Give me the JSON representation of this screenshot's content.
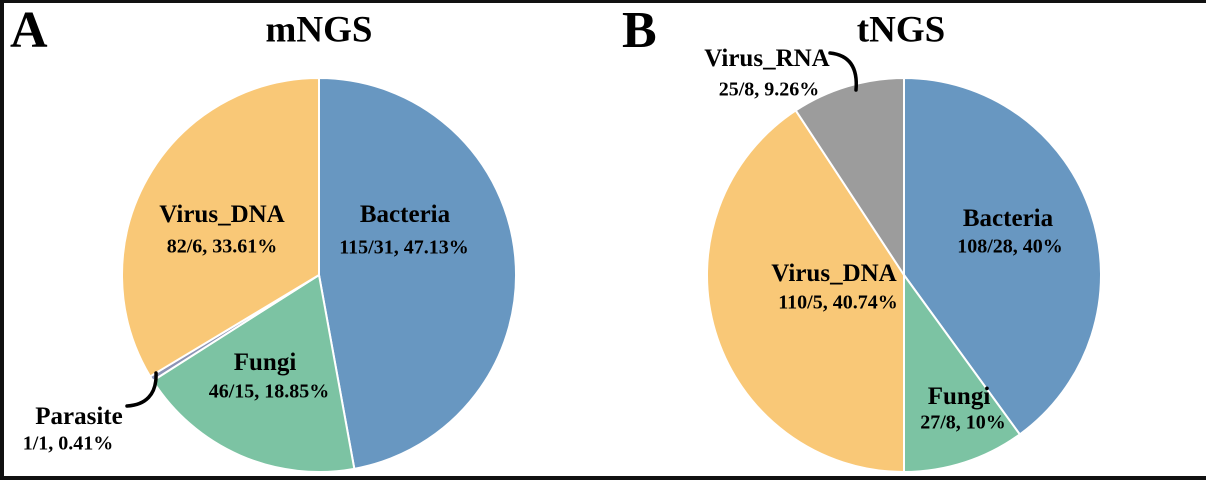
{
  "figure": {
    "background": "#ffffff",
    "border_color": "#111111"
  },
  "panels": [
    {
      "panel_label": "A",
      "title": "mNGS"
    },
    {
      "panel_label": "B",
      "title": "tNGS"
    }
  ],
  "chart_data": [
    {
      "type": "pie",
      "panel": "A",
      "title": "mNGS",
      "direction": "clockwise",
      "start_angle": "12-oclock",
      "gap_stroke_color": "#ffffff",
      "slices": [
        {
          "label": "Bacteria",
          "counts": "115/31",
          "percent": 47.13,
          "value_text": "115/31, 47.13%",
          "color": "#6897C1",
          "callout": false
        },
        {
          "label": "Fungi",
          "counts": "46/15",
          "percent": 18.85,
          "value_text": "46/15, 18.85%",
          "color": "#7CC3A3",
          "callout": false
        },
        {
          "label": "Parasite",
          "counts": "1/1",
          "percent": 0.41,
          "value_text": "1/1, 0.41%",
          "color": "#8C94B6",
          "callout": true
        },
        {
          "label": "Virus_DNA",
          "counts": "82/6",
          "percent": 33.61,
          "value_text": "82/6, 33.61%",
          "color": "#F9C877",
          "callout": false
        }
      ]
    },
    {
      "type": "pie",
      "panel": "B",
      "title": "tNGS",
      "direction": "clockwise",
      "start_angle": "12-oclock",
      "gap_stroke_color": "#ffffff",
      "slices": [
        {
          "label": "Bacteria",
          "counts": "108/28",
          "percent": 40,
          "value_text": "108/28, 40%",
          "color": "#6897C1",
          "callout": false
        },
        {
          "label": "Fungi",
          "counts": "27/8",
          "percent": 10,
          "value_text": "27/8, 10%",
          "color": "#7CC3A3",
          "callout": false
        },
        {
          "label": "Virus_DNA",
          "counts": "110/5",
          "percent": 40.74,
          "value_text": "110/5, 40.74%",
          "color": "#F9C877",
          "callout": false
        },
        {
          "label": "Virus_RNA",
          "counts": "25/8",
          "percent": 9.26,
          "value_text": "25/8, 9.26%",
          "color": "#9C9C9C",
          "callout": true
        }
      ]
    }
  ]
}
